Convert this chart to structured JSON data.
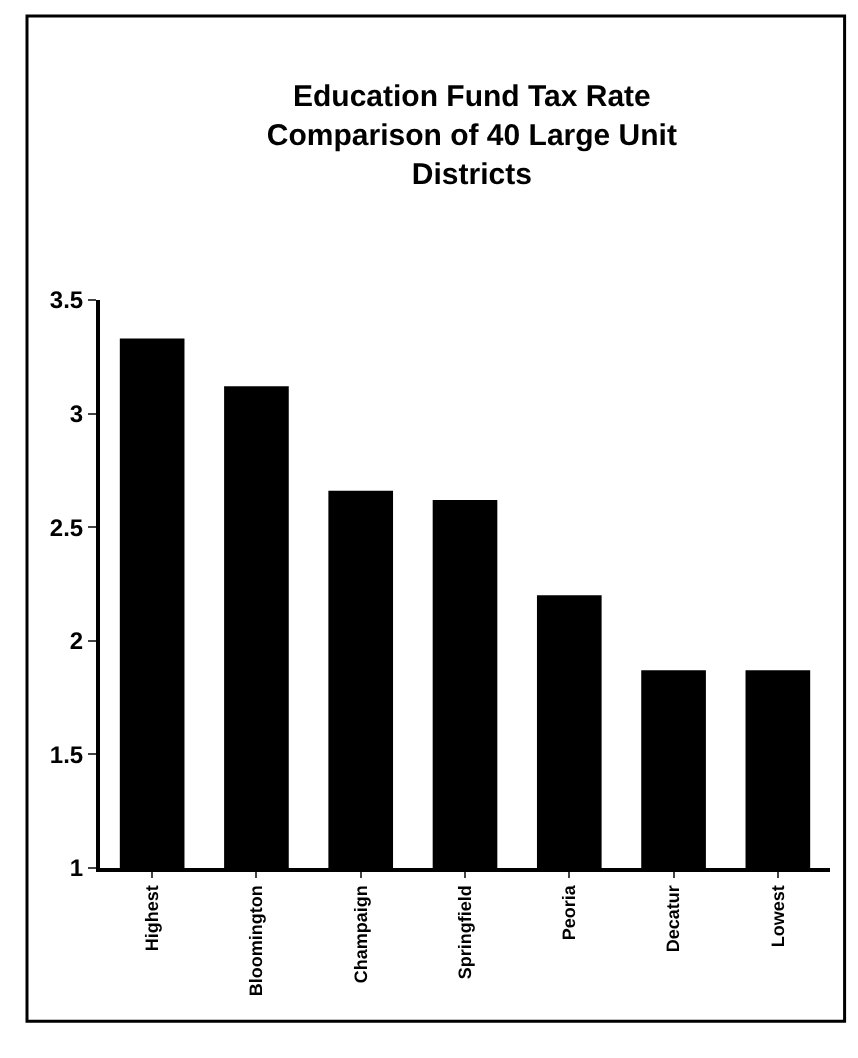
{
  "chart_data": {
    "type": "bar",
    "title": "Education Fund Tax Rate\nComparison of 40 Large Unit\nDistricts",
    "categories": [
      "Highest",
      "Bloomington",
      "Champaign",
      "Springfield",
      "Peoria",
      "Decatur",
      "Lowest"
    ],
    "values": [
      3.33,
      3.12,
      2.66,
      2.62,
      2.2,
      1.87,
      1.87
    ],
    "color": "#000000",
    "ylim": [
      1,
      3.5
    ],
    "yticks": [
      1,
      1.5,
      2,
      2.5,
      3,
      3.5
    ],
    "grid": false
  }
}
